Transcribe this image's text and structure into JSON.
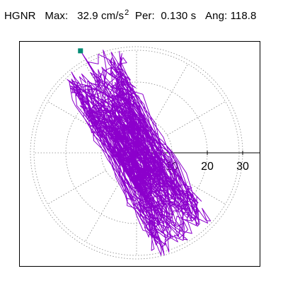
{
  "header": {
    "station": "HGNR",
    "max_label": "Max:",
    "max_value": "32.9",
    "max_unit": "cm/s",
    "max_unit_exp": "2",
    "per_label": "Per:",
    "per_value": "0.130 s",
    "ang_label": "Ang:",
    "ang_value": "118.8"
  },
  "chart_data": {
    "type": "polar-orbit",
    "title": "",
    "rings": [
      10,
      20,
      30
    ],
    "ring_tick_labels": [
      "10",
      "20",
      "30"
    ],
    "spoke_angles_deg": [
      0,
      30,
      60,
      90,
      120,
      150,
      180,
      210,
      240,
      270,
      300,
      330
    ],
    "max_amplitude": 32.9,
    "peak_angle_deg": 118.8,
    "peak_marker_color": "#008b74",
    "trace_color": "#8c00cc",
    "grid_color": "#888888",
    "grid": "dotted"
  }
}
